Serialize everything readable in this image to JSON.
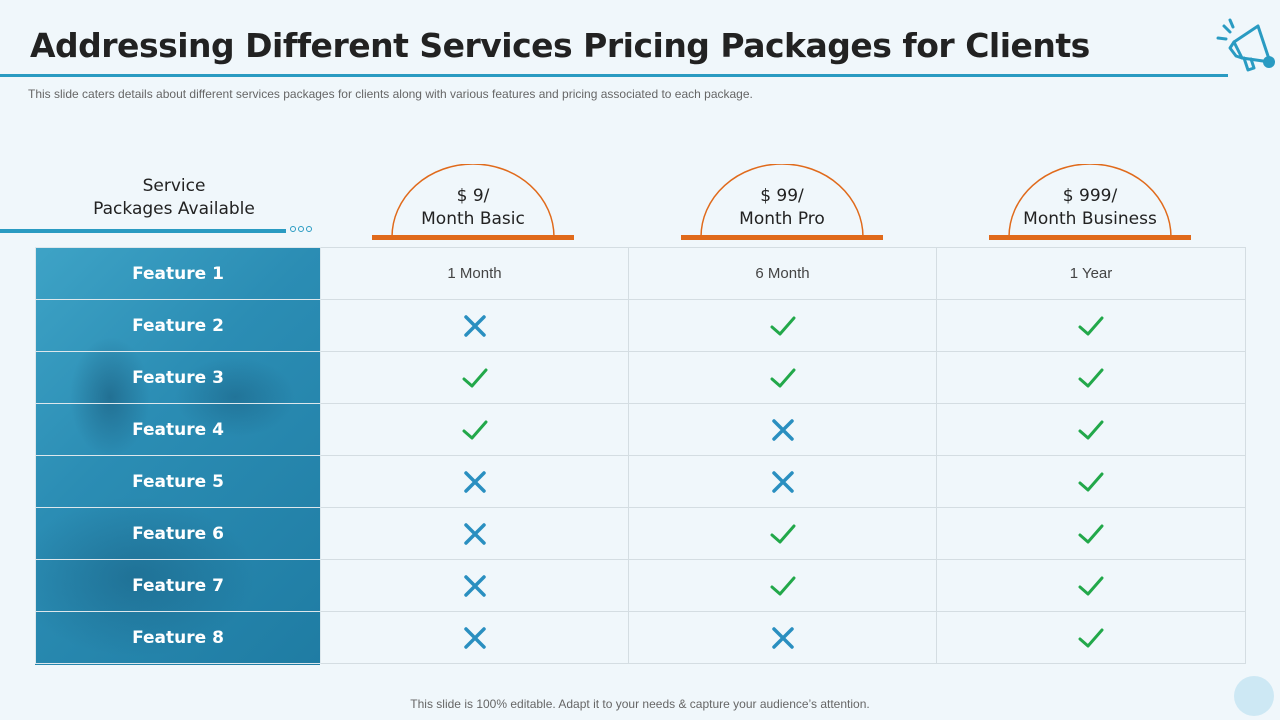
{
  "title": "Addressing Different Services Pricing Packages for Clients",
  "subtitle": "This slide caters details about different  services packages for clients along with various  features and pricing associated to each package.",
  "service_heading": [
    "Service",
    "Packages Available"
  ],
  "packages": [
    {
      "price": "$ 9/",
      "name": "Month Basic"
    },
    {
      "price": "$ 99/",
      "name": "Month Pro"
    },
    {
      "price": "$ 999/",
      "name": "Month Business"
    }
  ],
  "rows": [
    {
      "feature": "Feature 1",
      "values": [
        "1 Month",
        "6 Month",
        "1 Year"
      ]
    },
    {
      "feature": "Feature 2",
      "values": [
        "cross",
        "check",
        "check"
      ]
    },
    {
      "feature": "Feature 3",
      "values": [
        "check",
        "check",
        "check"
      ]
    },
    {
      "feature": "Feature 4",
      "values": [
        "check",
        "cross",
        "check"
      ]
    },
    {
      "feature": "Feature 5",
      "values": [
        "cross",
        "cross",
        "check"
      ]
    },
    {
      "feature": "Feature 6",
      "values": [
        "cross",
        "check",
        "check"
      ]
    },
    {
      "feature": "Feature 7",
      "values": [
        "cross",
        "check",
        "check"
      ]
    },
    {
      "feature": "Feature 8",
      "values": [
        "cross",
        "cross",
        "check"
      ]
    }
  ],
  "icons": {
    "check": "check-icon",
    "cross": "cross-icon",
    "header": "megaphone-icon"
  },
  "colors": {
    "accent": "#2a9bc2",
    "package_accent": "#e06a1b",
    "check": "#22a84a",
    "cross": "#2a8fc0"
  },
  "footer": "This slide is 100% editable. Adapt it to your needs & capture your audience’s attention."
}
